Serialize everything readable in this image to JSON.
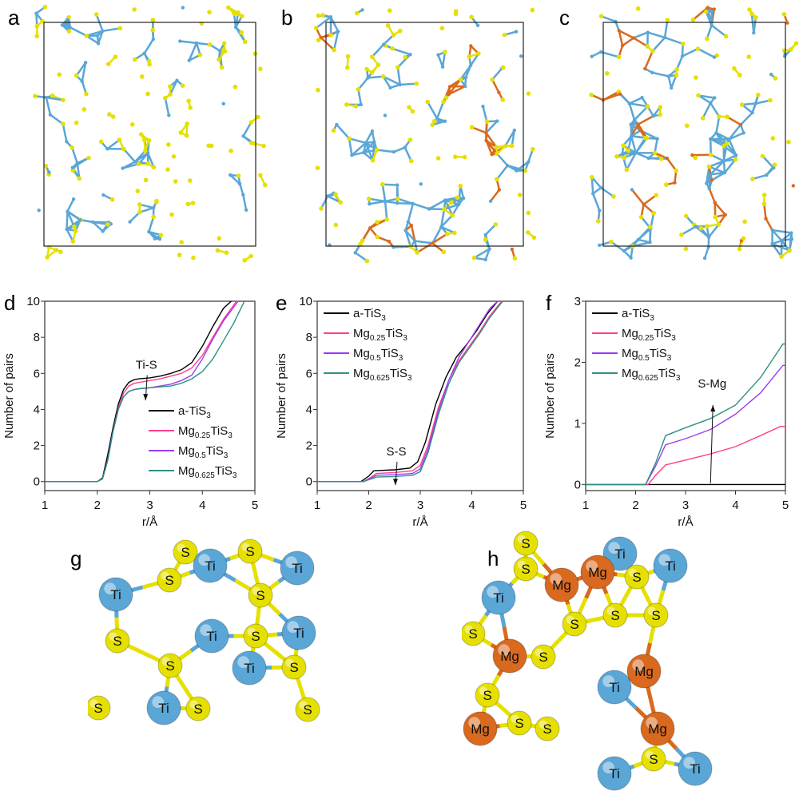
{
  "panel_letters": [
    "a",
    "b",
    "c",
    "d",
    "e",
    "f",
    "g",
    "h"
  ],
  "colors": {
    "a-TiS3": "#000000",
    "Mg0.25TiS3": "#ff3f8e",
    "Mg0.5TiS3": "#9b3cf5",
    "Mg0.625TiS3": "#2e8f84",
    "S": "#e6e000",
    "Ti": "#5aa6d6",
    "Mg": "#d9691e"
  },
  "chart_data": [
    {
      "type": "line",
      "panel": "d",
      "xlabel": "r/Å",
      "ylabel": "Number of pairs",
      "xlim": [
        1,
        5
      ],
      "ylim": [
        -0.5,
        10
      ],
      "xticks": [
        "1",
        "2",
        "3",
        "4",
        "5"
      ],
      "yticks": [
        "0",
        "2",
        "4",
        "6",
        "8",
        "10"
      ],
      "annotation": {
        "text": "Ti-S",
        "arrow": "down",
        "x": 2.95,
        "y_from": 5.9,
        "y_to": 4.5
      },
      "legend_placement": "bottom-right",
      "series": [
        {
          "name": "a-TiS3",
          "parts": [
            "a-TiS",
            "3"
          ],
          "color": "#000000",
          "x": [
            1,
            2,
            2.1,
            2.2,
            2.3,
            2.4,
            2.5,
            2.6,
            2.7,
            2.8,
            3,
            3.2,
            3.4,
            3.6,
            3.8,
            4,
            4.2,
            4.4,
            4.55
          ],
          "y": [
            0,
            0,
            0.2,
            1.5,
            3,
            4.3,
            5.1,
            5.5,
            5.65,
            5.7,
            5.75,
            5.85,
            6,
            6.2,
            6.6,
            7.5,
            8.6,
            9.6,
            10
          ]
        },
        {
          "name": "Mg0.25TiS3",
          "parts": [
            "Mg",
            "0.25",
            "TiS",
            "3"
          ],
          "color": "#ff3f8e",
          "x": [
            1,
            2,
            2.1,
            2.2,
            2.3,
            2.4,
            2.5,
            2.6,
            2.7,
            2.8,
            3,
            3.2,
            3.4,
            3.6,
            3.8,
            4,
            4.2,
            4.4,
            4.65
          ],
          "y": [
            0,
            0,
            0.15,
            1.2,
            2.8,
            4.1,
            4.9,
            5.3,
            5.45,
            5.5,
            5.6,
            5.7,
            5.85,
            6,
            6.3,
            7,
            8,
            9,
            10
          ]
        },
        {
          "name": "Mg0.5TiS3",
          "parts": [
            "Mg",
            "0.5",
            "TiS",
            "3"
          ],
          "color": "#9b3cf5",
          "x": [
            1,
            2,
            2.1,
            2.2,
            2.3,
            2.4,
            2.5,
            2.6,
            2.7,
            2.8,
            3,
            3.2,
            3.4,
            3.6,
            3.8,
            4,
            4.2,
            4.4,
            4.68
          ],
          "y": [
            0,
            0,
            0.15,
            1.2,
            2.8,
            4,
            4.7,
            5,
            5.1,
            5.15,
            5.2,
            5.3,
            5.4,
            5.6,
            5.9,
            6.8,
            7.9,
            8.9,
            10
          ]
        },
        {
          "name": "Mg0.625TiS3",
          "parts": [
            "Mg",
            "0.625",
            "TiS",
            "3"
          ],
          "color": "#2e8f84",
          "x": [
            1,
            2,
            2.1,
            2.2,
            2.3,
            2.4,
            2.5,
            2.6,
            2.7,
            2.8,
            3,
            3.2,
            3.4,
            3.6,
            3.8,
            4,
            4.2,
            4.4,
            4.6,
            4.8
          ],
          "y": [
            0,
            0,
            0.15,
            1.2,
            2.8,
            4,
            4.7,
            5,
            5.1,
            5.15,
            5.2,
            5.25,
            5.3,
            5.45,
            5.7,
            6.1,
            6.8,
            7.8,
            8.8,
            10
          ]
        }
      ]
    },
    {
      "type": "line",
      "panel": "e",
      "xlabel": "r/Å",
      "ylabel": "Number of pairs",
      "xlim": [
        1,
        5
      ],
      "ylim": [
        -0.5,
        10
      ],
      "xticks": [
        "1",
        "2",
        "3",
        "4",
        "5"
      ],
      "yticks": [
        "0",
        "2",
        "4",
        "6",
        "8",
        "10"
      ],
      "annotation": {
        "text": "S-S",
        "arrow": "down",
        "x": 2.55,
        "y_from": 1.1,
        "y_to": -0.2
      },
      "legend_placement": "top-left",
      "series": [
        {
          "name": "a-TiS3",
          "parts": [
            "a-TiS",
            "3"
          ],
          "color": "#000000",
          "x": [
            1,
            1.85,
            2,
            2.1,
            2.5,
            2.8,
            2.95,
            3.1,
            3.3,
            3.5,
            3.7,
            3.9,
            4.1,
            4.3,
            4.5
          ],
          "y": [
            0,
            0,
            0.3,
            0.6,
            0.65,
            0.75,
            1.1,
            2.2,
            4.3,
            5.8,
            6.9,
            7.6,
            8.4,
            9.3,
            10
          ]
        },
        {
          "name": "Mg0.25TiS3",
          "parts": [
            "Mg",
            "0.25",
            "TiS",
            "3"
          ],
          "color": "#ff3f8e",
          "x": [
            1,
            1.9,
            2.05,
            2.15,
            2.5,
            2.85,
            3,
            3.15,
            3.35,
            3.55,
            3.75,
            3.95,
            4.15,
            4.35,
            4.58
          ],
          "y": [
            0,
            0,
            0.25,
            0.45,
            0.5,
            0.6,
            0.9,
            2,
            4.1,
            5.6,
            6.7,
            7.5,
            8.3,
            9.2,
            10
          ]
        },
        {
          "name": "Mg0.5TiS3",
          "parts": [
            "Mg",
            "0.5",
            "TiS",
            "3"
          ],
          "color": "#9b3cf5",
          "x": [
            1,
            1.9,
            2.05,
            2.15,
            2.5,
            2.85,
            3,
            3.15,
            3.35,
            3.55,
            3.75,
            3.95,
            4.15,
            4.35,
            4.5
          ],
          "y": [
            0,
            0,
            0.2,
            0.35,
            0.38,
            0.45,
            0.7,
            1.8,
            3.9,
            5.6,
            6.9,
            7.8,
            8.7,
            9.6,
            10
          ]
        },
        {
          "name": "Mg0.625TiS3",
          "parts": [
            "Mg",
            "0.625",
            "TiS",
            "3"
          ],
          "color": "#2e8f84",
          "x": [
            1,
            1.9,
            2.05,
            2.15,
            2.5,
            2.85,
            3,
            3.15,
            3.35,
            3.55,
            3.75,
            3.95,
            4.15,
            4.35,
            4.6
          ],
          "y": [
            0,
            0,
            0.15,
            0.25,
            0.28,
            0.35,
            0.55,
            1.6,
            3.7,
            5.4,
            6.6,
            7.4,
            8.2,
            9.1,
            10
          ]
        }
      ]
    },
    {
      "type": "line",
      "panel": "f",
      "xlabel": "r/Å",
      "ylabel": "Number of pairs",
      "xlim": [
        1,
        5
      ],
      "ylim": [
        -0.1,
        3
      ],
      "xticks": [
        "1",
        "2",
        "3",
        "4",
        "5"
      ],
      "yticks": [
        "0",
        "1",
        "2",
        "3"
      ],
      "annotation": {
        "text": "S-Mg",
        "arrow": "up",
        "x": 3.5,
        "y_from": 0.02,
        "y_to": 1.3
      },
      "legend_placement": "top-left",
      "series": [
        {
          "name": "a-TiS3",
          "parts": [
            "a-TiS",
            "3"
          ],
          "color": "#000000",
          "x": [
            1,
            5
          ],
          "y": [
            0,
            0
          ]
        },
        {
          "name": "Mg0.25TiS3",
          "parts": [
            "Mg",
            "0.25",
            "TiS",
            "3"
          ],
          "color": "#ff3f8e",
          "x": [
            1,
            2.25,
            2.4,
            2.6,
            3,
            3.5,
            4,
            4.5,
            4.9,
            5
          ],
          "y": [
            0,
            0,
            0.15,
            0.32,
            0.4,
            0.5,
            0.62,
            0.8,
            0.95,
            0.95
          ]
        },
        {
          "name": "Mg0.5TiS3",
          "parts": [
            "Mg",
            "0.5",
            "TiS",
            "3"
          ],
          "color": "#9b3cf5",
          "x": [
            1,
            2.2,
            2.4,
            2.6,
            3,
            3.5,
            4,
            4.5,
            4.95,
            5
          ],
          "y": [
            0,
            0,
            0.3,
            0.65,
            0.75,
            0.9,
            1.15,
            1.5,
            1.95,
            1.95
          ]
        },
        {
          "name": "Mg0.625TiS3",
          "parts": [
            "Mg",
            "0.625",
            "TiS",
            "3"
          ],
          "color": "#2e8f84",
          "x": [
            1,
            2.2,
            2.4,
            2.6,
            3,
            3.5,
            4,
            4.5,
            4.95,
            5
          ],
          "y": [
            0,
            0,
            0.35,
            0.8,
            0.93,
            1.08,
            1.3,
            1.75,
            2.3,
            2.3
          ]
        }
      ]
    }
  ],
  "structure_g": {
    "atom_labels": [
      "S",
      "S",
      "Ti",
      "S",
      "S",
      "Ti",
      "Ti",
      "S",
      "S",
      "Ti",
      "S",
      "Ti",
      "S",
      "S",
      "Ti",
      "S",
      "S",
      "Ti"
    ]
  },
  "structure_h": {
    "atom_labels": [
      "S",
      "S",
      "Ti",
      "Ti",
      "Mg",
      "Mg",
      "S",
      "Ti",
      "S",
      "S",
      "S",
      "S",
      "Mg",
      "S",
      "Mg",
      "Ti",
      "S",
      "Mg",
      "S",
      "S",
      "Mg",
      "S",
      "Ti",
      "Ti"
    ]
  }
}
